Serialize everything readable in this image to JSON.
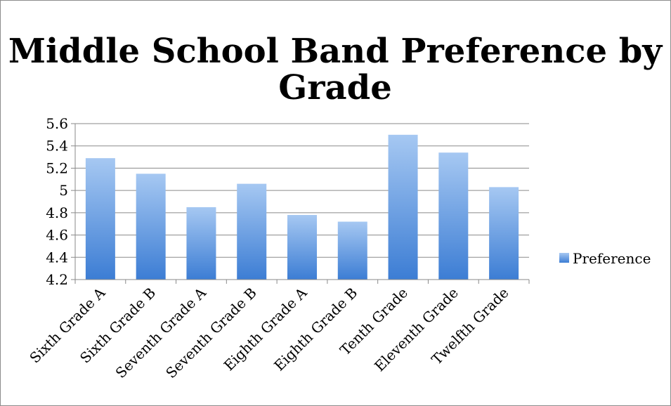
{
  "chart_data": {
    "type": "bar",
    "title_line1": "Middle School Band Preference by",
    "title_line2": "Grade",
    "categories": [
      "Sixth Grade A",
      "Sixth Grade B",
      "Seventh Grade A",
      "Seventh Grade B",
      "Eighth Grade A",
      "Eighth Grade B",
      "Tenth Grade",
      "Eleventh Grade",
      "Twelfth Grade"
    ],
    "series": [
      {
        "name": "Preference",
        "values": [
          5.29,
          5.15,
          4.85,
          5.06,
          4.78,
          4.72,
          5.5,
          5.34,
          5.03
        ]
      }
    ],
    "ylim": [
      4.2,
      5.6
    ],
    "yticks": [
      "4.2",
      "4.4",
      "4.6",
      "4.8",
      "5",
      "5.2",
      "5.4",
      "5.6"
    ],
    "grid": true,
    "legend_position": "right",
    "colors": {
      "bar_top": "#a6c8f2",
      "bar_bottom": "#3c7dd4",
      "grid": "#8a8a8a",
      "axis": "#8a8a8a"
    }
  }
}
